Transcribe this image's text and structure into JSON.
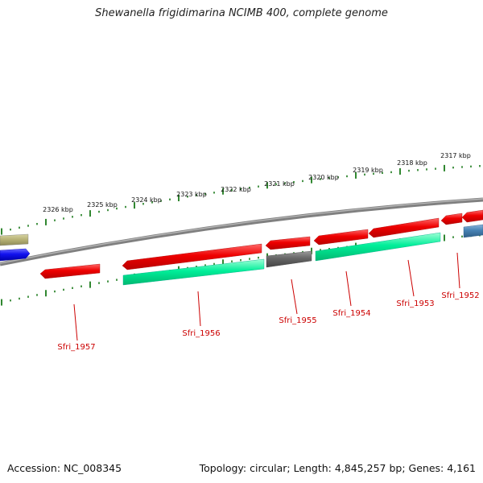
{
  "title": "Shewanella frigidimarina NCIMB 400, complete genome",
  "footer": {
    "accession": "Accession: NC_008345",
    "summary": "Topology: circular; Length: 4,845,257 bp; Genes: 4,161"
  },
  "colors": {
    "backbone": "#888888",
    "tick": "#1a7a1a",
    "forward_gene": "#ee0000",
    "reverse_gene": "#00ee99",
    "other_gene": "#666666",
    "blue_gene": "#1111ee",
    "khaki_gene": "#b8b377",
    "steel_gene": "#4682b4",
    "label": "#cc0000"
  },
  "scale_labels": [
    "2326 kbp",
    "2325 kbp",
    "2324 kbp",
    "2323 kbp",
    "2322 kbp",
    "2321 kbp",
    "2320 kbp",
    "2319 kbp",
    "2318 kbp",
    "2317 kbp"
  ],
  "gene_labels": [
    "Sfri_1957",
    "Sfri_1956",
    "Sfri_1955",
    "Sfri_1954",
    "Sfri_1953",
    "Sfri_1952"
  ]
}
